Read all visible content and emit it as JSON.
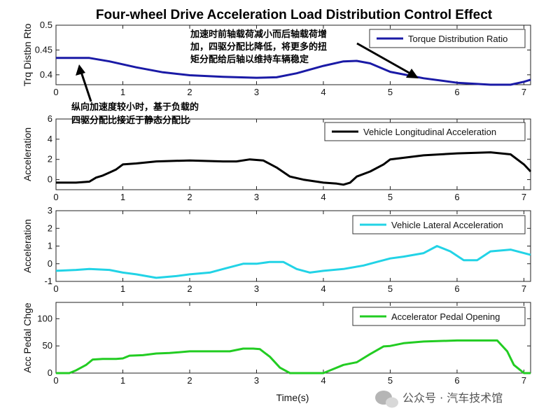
{
  "title": "Four-wheel Drive Acceleration Load Distribution Control Effect",
  "xlabel": "Time(s)",
  "watermark": "公众号 · 汽车技术馆",
  "annotations": [
    {
      "lines": [
        "加速时前轴载荷减小而后轴载荷增",
        "加，四驱分配比降低，将更多的扭",
        "矩分配给后轴以维持车辆稳定"
      ]
    },
    {
      "lines": [
        "纵向加速度较小时，基于负载的",
        "四驱分配比接近于静态分配比"
      ]
    }
  ],
  "chart_data": [
    {
      "type": "line",
      "ylabel": "Trq Distbn Rto",
      "xlim": [
        0,
        7.1
      ],
      "ylim": [
        0.38,
        0.5
      ],
      "xticks": [
        0,
        1,
        2,
        3,
        4,
        5,
        6,
        7
      ],
      "yticks": [
        0.4,
        0.45,
        0.5
      ],
      "yticklabels": [
        "0.4",
        "0.45",
        "0.5"
      ],
      "legend": "top-right",
      "series": [
        {
          "name": "Torque Distribution Ratio",
          "color": "#1a1aa6",
          "x": [
            0,
            0.3,
            0.5,
            0.8,
            1.2,
            1.6,
            2.0,
            2.5,
            3.0,
            3.3,
            3.6,
            4.0,
            4.3,
            4.5,
            4.7,
            5.0,
            5.5,
            6.0,
            6.5,
            6.8,
            7.0,
            7.1
          ],
          "y": [
            0.434,
            0.434,
            0.434,
            0.427,
            0.415,
            0.405,
            0.399,
            0.396,
            0.394,
            0.395,
            0.403,
            0.418,
            0.427,
            0.428,
            0.423,
            0.406,
            0.393,
            0.384,
            0.38,
            0.38,
            0.386,
            0.39
          ]
        }
      ]
    },
    {
      "type": "line",
      "ylabel": "Acceleration",
      "xlim": [
        0,
        7.1
      ],
      "ylim": [
        -1,
        6
      ],
      "xticks": [
        0,
        1,
        2,
        3,
        4,
        5,
        6,
        7
      ],
      "yticks": [
        0,
        2,
        4,
        6
      ],
      "yticklabels": [
        "0",
        "2",
        "4",
        "6"
      ],
      "legend": "top-right",
      "series": [
        {
          "name": "Vehicle Longitudinal Acceleration",
          "color": "#000000",
          "x": [
            0,
            0.3,
            0.5,
            0.6,
            0.7,
            0.8,
            0.9,
            1.0,
            1.2,
            1.5,
            2.0,
            2.5,
            2.7,
            2.9,
            3.1,
            3.3,
            3.5,
            3.7,
            4.0,
            4.2,
            4.3,
            4.4,
            4.5,
            4.7,
            4.9,
            5.0,
            5.5,
            6.0,
            6.5,
            6.8,
            7.0,
            7.1
          ],
          "y": [
            -0.3,
            -0.3,
            -0.2,
            0.2,
            0.4,
            0.7,
            1.0,
            1.5,
            1.6,
            1.8,
            1.9,
            1.8,
            1.8,
            2.0,
            1.9,
            1.2,
            0.3,
            0.0,
            -0.3,
            -0.4,
            -0.5,
            -0.3,
            0.3,
            0.8,
            1.5,
            2.0,
            2.4,
            2.6,
            2.7,
            2.5,
            1.5,
            0.8
          ]
        }
      ]
    },
    {
      "type": "line",
      "ylabel": "Acceleration",
      "xlim": [
        0,
        7.1
      ],
      "ylim": [
        -1,
        3
      ],
      "xticks": [
        0,
        1,
        2,
        3,
        4,
        5,
        6,
        7
      ],
      "yticks": [
        -1,
        0,
        1,
        2,
        3
      ],
      "yticklabels": [
        "-1",
        "0",
        "1",
        "2",
        "3"
      ],
      "legend": "top-right",
      "series": [
        {
          "name": "Vehicle Lateral Acceleration",
          "color": "#22d3e6",
          "x": [
            0,
            0.3,
            0.5,
            0.8,
            1.0,
            1.2,
            1.5,
            1.8,
            2.0,
            2.3,
            2.5,
            2.8,
            3.0,
            3.2,
            3.4,
            3.6,
            3.8,
            4.0,
            4.3,
            4.6,
            4.8,
            5.0,
            5.2,
            5.5,
            5.7,
            5.9,
            6.1,
            6.3,
            6.5,
            6.8,
            7.0,
            7.1
          ],
          "y": [
            -0.4,
            -0.35,
            -0.3,
            -0.35,
            -0.5,
            -0.6,
            -0.8,
            -0.7,
            -0.6,
            -0.5,
            -0.3,
            0.0,
            0.0,
            0.1,
            0.1,
            -0.3,
            -0.5,
            -0.4,
            -0.3,
            -0.1,
            0.1,
            0.3,
            0.4,
            0.6,
            1.0,
            0.7,
            0.2,
            0.2,
            0.7,
            0.8,
            0.6,
            0.5
          ]
        }
      ]
    },
    {
      "type": "line",
      "ylabel": "Acc Pedal Chge",
      "xlim": [
        0,
        7.1
      ],
      "ylim": [
        0,
        130
      ],
      "xticks": [
        0,
        1,
        2,
        3,
        4,
        5,
        6,
        7
      ],
      "yticks": [
        0,
        50,
        100
      ],
      "yticklabels": [
        "0",
        "50",
        "100"
      ],
      "legend": "top-right",
      "series": [
        {
          "name": "Accelerator Pedal Opening",
          "color": "#22cc22",
          "x": [
            0,
            0.2,
            0.3,
            0.45,
            0.55,
            0.7,
            0.9,
            1.0,
            1.1,
            1.3,
            1.5,
            1.7,
            2.0,
            2.3,
            2.5,
            2.6,
            2.8,
            2.95,
            3.05,
            3.2,
            3.35,
            3.5,
            3.8,
            4.0,
            4.1,
            4.3,
            4.5,
            4.7,
            4.9,
            5.0,
            5.2,
            5.5,
            6.0,
            6.5,
            6.6,
            6.75,
            6.85,
            7.0,
            7.1
          ],
          "y": [
            0,
            0,
            5,
            15,
            25,
            26,
            26,
            27,
            32,
            33,
            36,
            37,
            40,
            40,
            40,
            40,
            45,
            45,
            44,
            30,
            10,
            0,
            0,
            0,
            5,
            15,
            20,
            35,
            49,
            50,
            55,
            58,
            60,
            60,
            60,
            40,
            15,
            0,
            0
          ]
        }
      ]
    }
  ]
}
